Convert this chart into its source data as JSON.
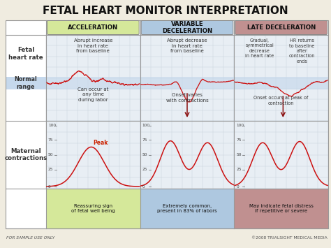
{
  "title": "FETAL HEART MONITOR INTERPRETATION",
  "title_fontsize": 11,
  "bg_color": "#f0ece0",
  "grid_bg": "#e8eef4",
  "columns": [
    "ACCELERATION",
    "VARIABLE\nDECELERATION",
    "LATE DECELERATION"
  ],
  "col_header_colors": [
    "#d5e89a",
    "#aec8e0",
    "#c09090"
  ],
  "bottom_labels": [
    "Reassuring sign\nof fetal well being",
    "Extremely common,\npresent in 83% of labors",
    "May indicate fetal distress\nif repetitive or severe"
  ],
  "bottom_label_colors": [
    "#d5e89a",
    "#aec8e0",
    "#c09090"
  ],
  "footer_left": "FOR SAMPLE USE ONLY",
  "footer_right": "©2008 TRIALSIGHT MEDICAL MEDIA",
  "normal_range_color": "#c5d8ec",
  "arrow_color": "#8b1010",
  "peak_label_color": "#cc2200",
  "line_color": "#cc1111",
  "border_color": "#999999",
  "grid_line_color": "#c5cfd8",
  "label_color": "#333333",
  "fhr_annotations": {
    "col0_top": "Abrupt increase\nin heart rate\nfrom baseline",
    "col0_bot": "Can occur at\nany time\nduring labor",
    "col1_top": "Abrupt decrease\nin heart rate\nfrom baseline",
    "col1_bot": "Onset varies\nwith contractions",
    "col2_tl": "Gradual,\nsymmetrical\ndecrease\nin heart rate",
    "col2_tr": "HR returns\nto baseline\nafter\ncontraction\nends",
    "col2_bot": "Onset occurs at peak of\ncontraction"
  }
}
